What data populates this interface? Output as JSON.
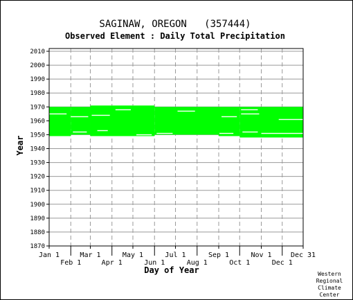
{
  "chart_data": {
    "type": "heatmap",
    "title": "SAGINAW, OREGON   (357444)",
    "subtitle": "Observed Element : Daily Total Precipitation",
    "xlabel": "Day of Year",
    "ylabel": "Year",
    "xlim": [
      1,
      365
    ],
    "ylim": [
      1870,
      2012
    ],
    "y_ticks": [
      1870,
      1880,
      1890,
      1900,
      1910,
      1920,
      1930,
      1940,
      1950,
      1960,
      1970,
      1980,
      1990,
      2000,
      2010
    ],
    "x_ticks": [
      {
        "label": "Jan 1",
        "day": 1,
        "row": 0
      },
      {
        "label": "Feb 1",
        "day": 32,
        "row": 1
      },
      {
        "label": "Mar 1",
        "day": 60,
        "row": 0
      },
      {
        "label": "Apr 1",
        "day": 91,
        "row": 1
      },
      {
        "label": "May 1",
        "day": 121,
        "row": 0
      },
      {
        "label": "Jun 1",
        "day": 152,
        "row": 1
      },
      {
        "label": "Jul 1",
        "day": 182,
        "row": 0
      },
      {
        "label": "Aug 1",
        "day": 213,
        "row": 1
      },
      {
        "label": "Sep 1",
        "day": 244,
        "row": 0
      },
      {
        "label": "Oct 1",
        "day": 274,
        "row": 1
      },
      {
        "label": "Nov 1",
        "day": 305,
        "row": 0
      },
      {
        "label": "Dec 1",
        "day": 335,
        "row": 1
      },
      {
        "label": "Dec 31",
        "day": 365,
        "row": 0
      }
    ],
    "data_color": "#00ff00",
    "data_coverage": [
      {
        "start_day": 1,
        "end_day": 32,
        "start_year": 1949,
        "end_year": 1970
      },
      {
        "start_day": 32,
        "end_day": 60,
        "start_year": 1950,
        "end_year": 1970
      },
      {
        "start_day": 60,
        "end_day": 152,
        "start_year": 1949,
        "end_year": 1971
      },
      {
        "start_day": 152,
        "end_day": 244,
        "start_year": 1950,
        "end_year": 1970
      },
      {
        "start_day": 244,
        "end_day": 274,
        "start_year": 1949,
        "end_year": 1970
      },
      {
        "start_day": 274,
        "end_day": 365,
        "start_year": 1948,
        "end_year": 1970
      }
    ],
    "data_gaps": [
      {
        "start_day": 1,
        "end_day": 26,
        "year": 1965
      },
      {
        "start_day": 32,
        "end_day": 57,
        "year": 1963
      },
      {
        "start_day": 35,
        "end_day": 55,
        "year": 1952
      },
      {
        "start_day": 62,
        "end_day": 88,
        "year": 1964
      },
      {
        "start_day": 70,
        "end_day": 85,
        "year": 1953
      },
      {
        "start_day": 96,
        "end_day": 118,
        "year": 1968
      },
      {
        "start_day": 126,
        "end_day": 148,
        "year": 1950
      },
      {
        "start_day": 155,
        "end_day": 178,
        "year": 1951
      },
      {
        "start_day": 185,
        "end_day": 210,
        "year": 1967
      },
      {
        "start_day": 248,
        "end_day": 270,
        "year": 1963
      },
      {
        "start_day": 245,
        "end_day": 265,
        "year": 1951
      },
      {
        "start_day": 276,
        "end_day": 300,
        "year": 1968
      },
      {
        "start_day": 276,
        "end_day": 302,
        "year": 1965
      },
      {
        "start_day": 278,
        "end_day": 300,
        "year": 1952
      },
      {
        "start_day": 305,
        "end_day": 365,
        "year": 1951
      },
      {
        "start_day": 330,
        "end_day": 365,
        "year": 1961
      }
    ],
    "grid": true
  },
  "credit": [
    "Western",
    "Regional",
    "Climate",
    "Center"
  ]
}
